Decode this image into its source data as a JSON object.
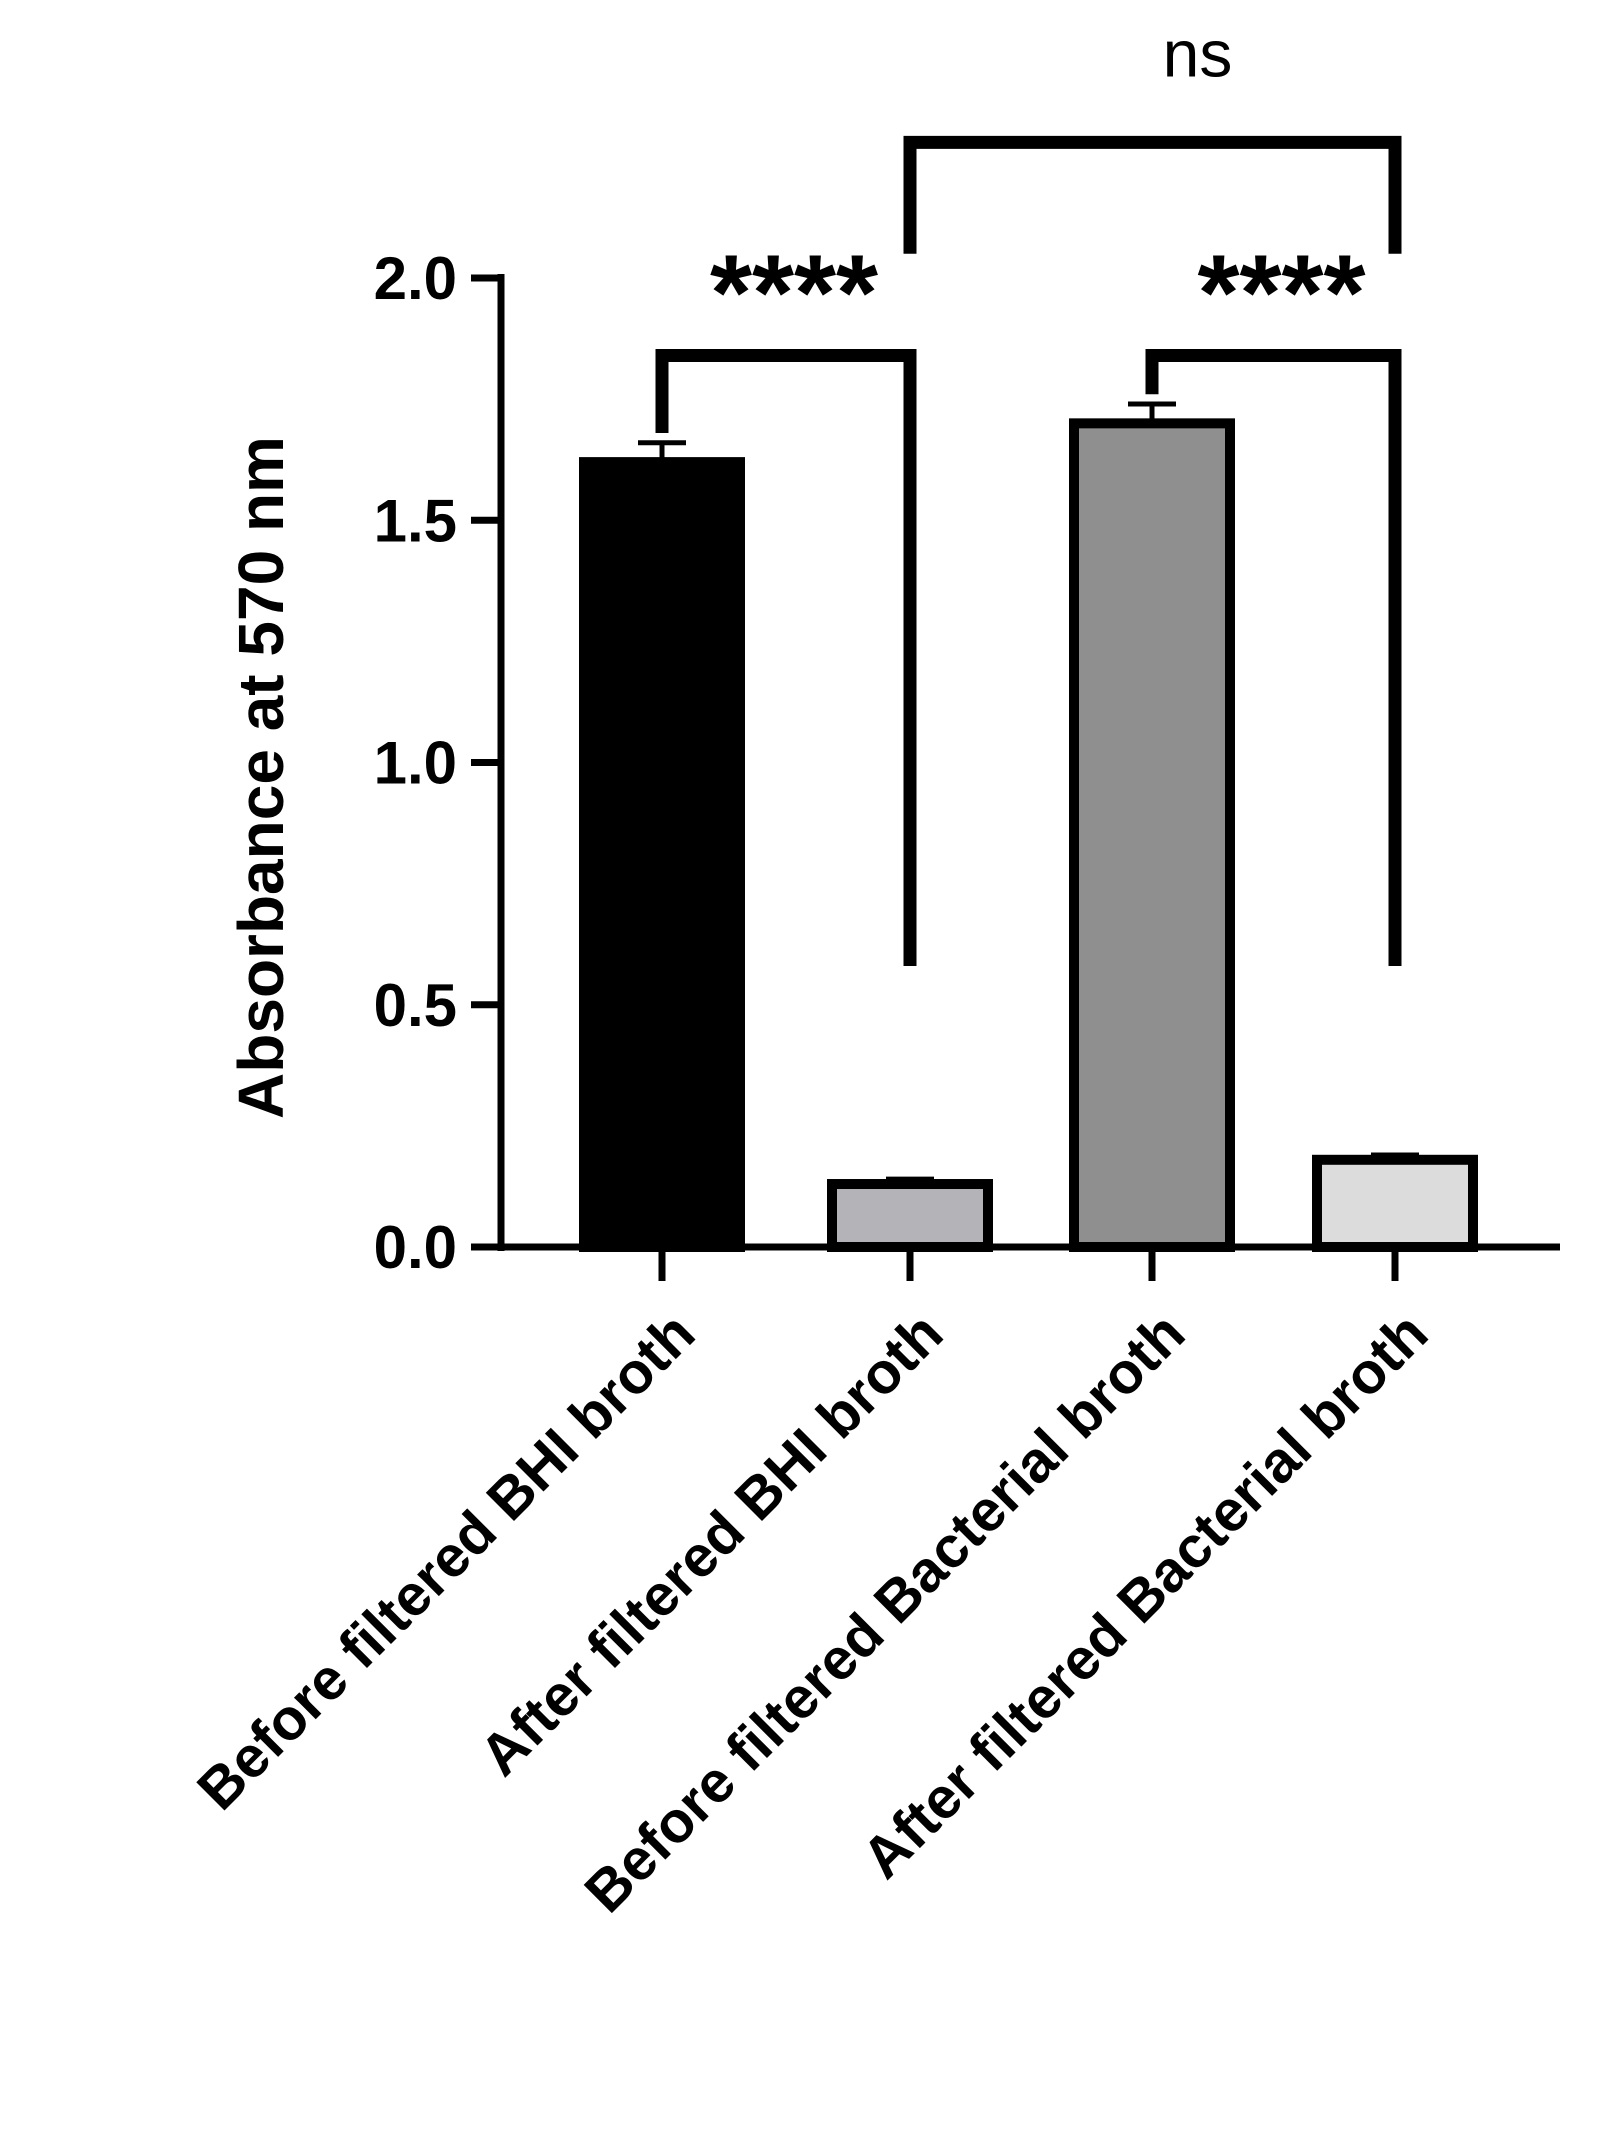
{
  "chart_data": {
    "type": "bar",
    "title": "",
    "xlabel": "",
    "ylabel": "Absorbance at 570 nm",
    "ylim": [
      0,
      2.0
    ],
    "yticks": [
      0.0,
      0.5,
      1.0,
      1.5,
      2.0
    ],
    "ytick_labels": [
      "0.0",
      "0.5",
      "1.0",
      "1.5",
      "2.0"
    ],
    "grid": false,
    "legend": "none",
    "categories": [
      "Before filtered BHI broth",
      "After filtered BHI broth",
      "Before filtered Bacterial broth",
      "After filtered Bacterial broth"
    ],
    "values": [
      1.62,
      0.13,
      1.7,
      0.18
    ],
    "errors": [
      0.04,
      0.01,
      0.04,
      0.01
    ],
    "colors": [
      "#000000",
      "#b4b4b8",
      "#8f8f8f",
      "#dcdcdc"
    ],
    "significance": [
      {
        "from": 0,
        "to": 1,
        "label": "****",
        "level": 1.84
      },
      {
        "from": 2,
        "to": 3,
        "label": "****",
        "level": 1.84
      },
      {
        "from": 1,
        "to": 3,
        "label": "ns",
        "level": 2.28
      }
    ]
  }
}
